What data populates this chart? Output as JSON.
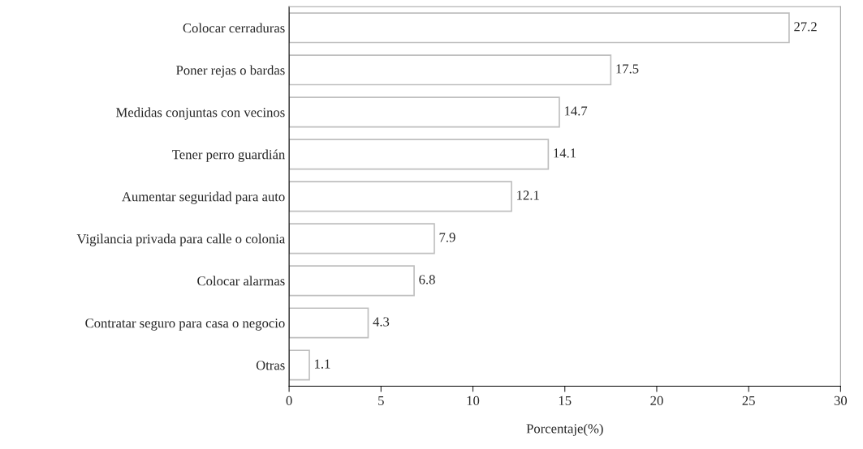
{
  "chart_data": {
    "type": "bar",
    "orientation": "horizontal",
    "xlabel": "Porcentaje(%)",
    "categories": [
      "Colocar cerraduras",
      "Poner rejas o bardas",
      "Medidas conjuntas con vecinos",
      "Tener perro guardián",
      "Aumentar seguridad para auto",
      "Vigilancia privada para calle o colonia",
      "Colocar alarmas",
      "Contratar seguro para casa o negocio",
      "Otras"
    ],
    "values": [
      27.2,
      17.5,
      14.7,
      14.1,
      12.1,
      7.9,
      6.8,
      4.3,
      1.1
    ],
    "color": "#ffffff",
    "xlim": [
      0,
      30
    ],
    "xticks": [
      0,
      5,
      10,
      15,
      20,
      25,
      30
    ],
    "data_labels": true,
    "grid": false,
    "legend": false
  }
}
